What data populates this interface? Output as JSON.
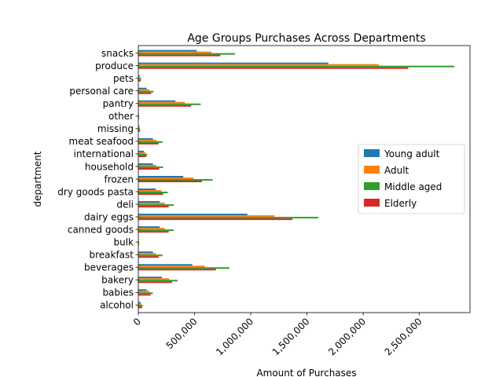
{
  "chart_data": {
    "type": "bar",
    "orientation": "horizontal",
    "title": "Age Groups Purchases Across Departments",
    "xlabel": "Amount of Purchases",
    "ylabel": "department",
    "xlim": [
      0,
      2950000
    ],
    "xticks": [
      0,
      500000,
      1000000,
      1500000,
      2000000,
      2500000
    ],
    "xtick_labels": [
      "0",
      "500,000",
      "1,000,000",
      "1,500,000",
      "2,000,000",
      "2,500,000"
    ],
    "categories": [
      "alcohol",
      "babies",
      "bakery",
      "beverages",
      "breakfast",
      "bulk",
      "canned goods",
      "dairy eggs",
      "deli",
      "dry goods pasta",
      "frozen",
      "household",
      "international",
      "meat seafood",
      "missing",
      "other",
      "pantry",
      "personal care",
      "pets",
      "produce",
      "snacks"
    ],
    "series": [
      {
        "name": "Young adult",
        "color": "#1f77b4",
        "values": [
          20000,
          75000,
          210000,
          480000,
          130000,
          4000,
          190000,
          970000,
          190000,
          155000,
          400000,
          130000,
          50000,
          130000,
          9000,
          4000,
          330000,
          75000,
          12000,
          1690000,
          520000
        ]
      },
      {
        "name": "Adult",
        "color": "#ff7f0e",
        "values": [
          28000,
          100000,
          275000,
          590000,
          155000,
          5000,
          235000,
          1210000,
          235000,
          205000,
          490000,
          160000,
          65000,
          160000,
          12000,
          5000,
          415000,
          100000,
          18000,
          2140000,
          650000
        ]
      },
      {
        "name": "Middle aged",
        "color": "#2ca02c",
        "values": [
          40000,
          130000,
          350000,
          810000,
          215000,
          7000,
          315000,
          1600000,
          315000,
          260000,
          660000,
          220000,
          80000,
          215000,
          17000,
          7000,
          555000,
          135000,
          25000,
          2810000,
          860000
        ]
      },
      {
        "name": "Elderly",
        "color": "#d62728",
        "values": [
          33000,
          110000,
          300000,
          690000,
          180000,
          6000,
          270000,
          1370000,
          270000,
          220000,
          565000,
          185000,
          70000,
          180000,
          14000,
          6000,
          470000,
          115000,
          21000,
          2400000,
          730000
        ]
      }
    ],
    "legend": "center-right",
    "grid": false
  }
}
